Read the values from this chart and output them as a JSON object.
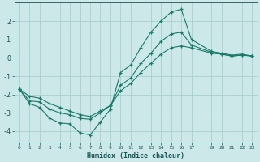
{
  "xlabel": "Humidex (Indice chaleur)",
  "bg_color": "#cce8e8",
  "grid_color": "#aacfcf",
  "line_color": "#1a7a6a",
  "xlim": [
    -0.5,
    23.5
  ],
  "ylim": [
    -4.6,
    3.0
  ],
  "yticks": [
    -4,
    -3,
    -2,
    -1,
    0,
    1,
    2
  ],
  "xticks": [
    0,
    1,
    2,
    3,
    4,
    5,
    6,
    7,
    8,
    9,
    10,
    11,
    12,
    13,
    14,
    15,
    16,
    17,
    19,
    20,
    21,
    22,
    23
  ],
  "series": [
    {
      "x": [
        0,
        1,
        2,
        3,
        4,
        5,
        6,
        7,
        8,
        9,
        10,
        11,
        12,
        13,
        14,
        15,
        16,
        17,
        19,
        20,
        21,
        22,
        23
      ],
      "y": [
        -1.7,
        -2.1,
        -2.2,
        -2.5,
        -2.7,
        -2.9,
        -3.1,
        -3.2,
        -2.9,
        -2.6,
        -1.8,
        -1.4,
        -0.8,
        -0.3,
        0.2,
        0.55,
        0.65,
        0.55,
        0.25,
        0.2,
        0.1,
        0.15,
        0.1
      ]
    },
    {
      "x": [
        0,
        1,
        2,
        3,
        4,
        5,
        6,
        7,
        8,
        9,
        10,
        11,
        12,
        13,
        14,
        15,
        16,
        17,
        19,
        20,
        21,
        22,
        23
      ],
      "y": [
        -1.7,
        -2.35,
        -2.4,
        -2.8,
        -3.0,
        -3.1,
        -3.3,
        -3.35,
        -3.0,
        -2.6,
        -1.5,
        -1.1,
        -0.3,
        0.25,
        0.9,
        1.3,
        1.4,
        0.7,
        0.3,
        0.2,
        0.1,
        0.15,
        0.1
      ]
    },
    {
      "x": [
        0,
        1,
        2,
        3,
        4,
        5,
        6,
        7,
        8,
        9,
        10,
        11,
        12,
        13,
        14,
        15,
        16,
        17,
        19,
        20,
        21,
        22,
        23
      ],
      "y": [
        -1.7,
        -2.5,
        -2.7,
        -3.3,
        -3.55,
        -3.6,
        -4.1,
        -4.2,
        -3.5,
        -2.8,
        -0.8,
        -0.4,
        0.55,
        1.4,
        2.0,
        2.5,
        2.65,
        1.0,
        0.35,
        0.25,
        0.15,
        0.2,
        0.1
      ]
    }
  ]
}
